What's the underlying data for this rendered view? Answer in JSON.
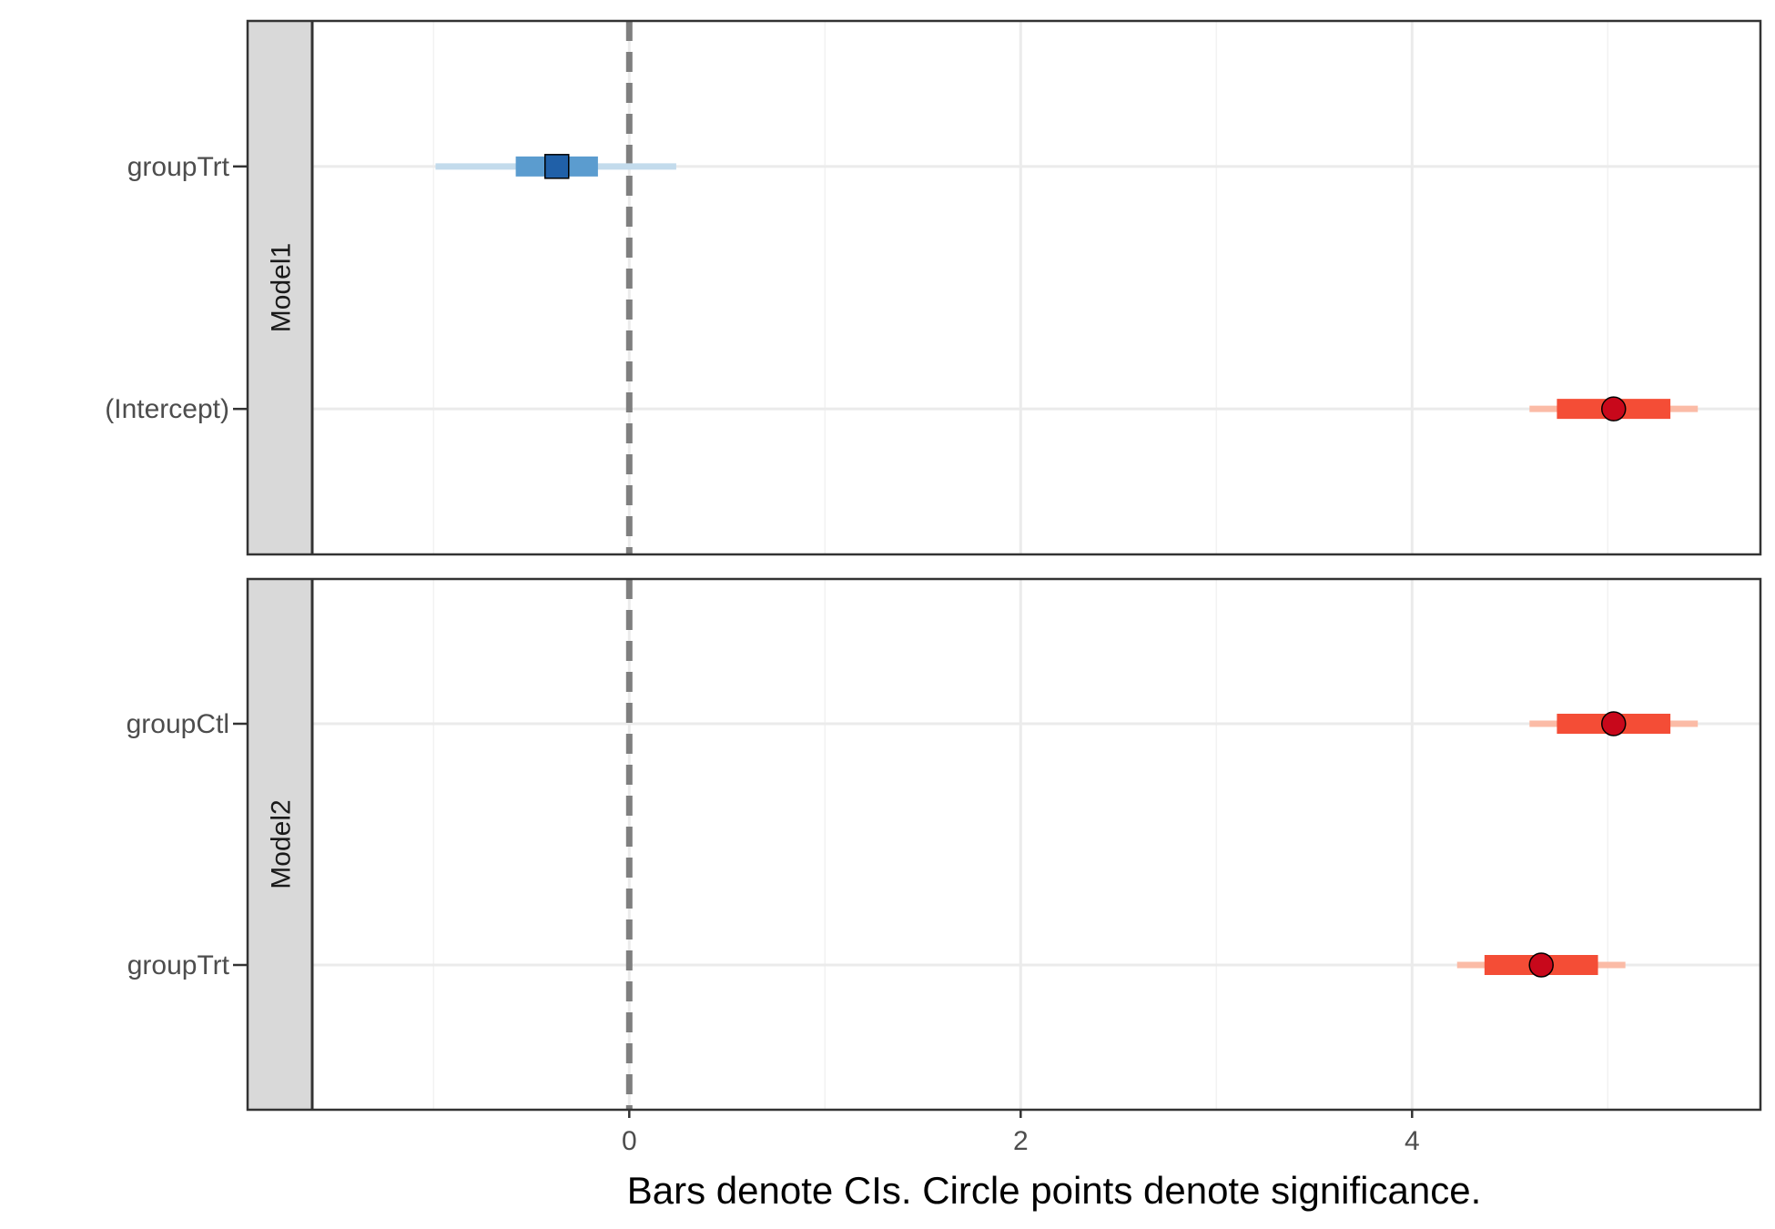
{
  "chart_data": {
    "type": "coefficient-plot",
    "xlabel": "Bars denote CIs. Circle points denote significance.",
    "ylabel": "",
    "xlim": [
      -1.62,
      5.78
    ],
    "x_ticks": [
      0,
      2,
      4
    ],
    "x_tick_labels": [
      "0",
      "2",
      "4"
    ],
    "x_minor_ticks": [
      -1,
      1,
      3,
      5
    ],
    "reference_line": 0,
    "grid": true,
    "colors": {
      "significant_point": "#c8081b",
      "significant_inner": "#f44d36",
      "significant_outer": "#fbbba6",
      "nonsignificant_point": "#2060a8",
      "nonsignificant_inner": "#5b9ccf",
      "nonsignificant_outer": "#c3dbec",
      "strip_fill": "#d9d9d9",
      "reference_line": "#7f7f7f"
    },
    "panels": [
      {
        "label": "Model1",
        "terms": [
          {
            "term": "(Intercept)",
            "estimate": 5.03,
            "inner": [
              4.74,
              5.32
            ],
            "outer": [
              4.6,
              5.46
            ],
            "significant": true
          },
          {
            "term": "groupTrt",
            "estimate": -0.37,
            "inner": [
              -0.58,
              -0.16
            ],
            "outer": [
              -0.99,
              0.24
            ],
            "significant": false
          }
        ]
      },
      {
        "label": "Model2",
        "terms": [
          {
            "term": "groupTrt",
            "estimate": 4.66,
            "inner": [
              4.37,
              4.95
            ],
            "outer": [
              4.23,
              5.09
            ],
            "significant": true
          },
          {
            "term": "groupCtl",
            "estimate": 5.03,
            "inner": [
              4.74,
              5.32
            ],
            "outer": [
              4.6,
              5.46
            ],
            "significant": true
          }
        ]
      }
    ]
  }
}
